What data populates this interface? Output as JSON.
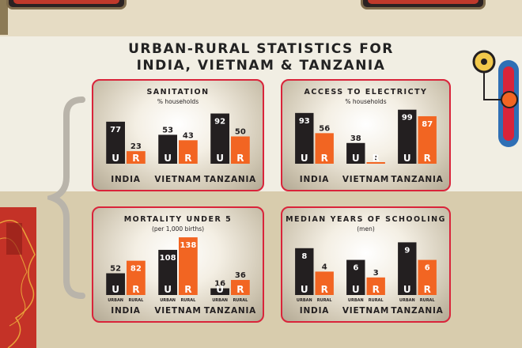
{
  "page": {
    "title_line1": "URBAN-RURAL STATISTICS FOR",
    "title_line2": "INDIA, VIETNAM & TANZANIA"
  },
  "colors": {
    "urban": "#231f20",
    "rural": "#f26522",
    "panel_border": "#d9243a",
    "text": "#231f20"
  },
  "labels": {
    "urban_letter": "U",
    "rural_letter": "R",
    "urban_word": "URBAN",
    "rural_word": "RURAL"
  },
  "chart_data": [
    {
      "type": "bar",
      "title": "SANITATION",
      "subtitle": "% households",
      "categories": [
        "INDIA",
        "VIETNAM",
        "TANZANIA"
      ],
      "series": [
        {
          "name": "URBAN",
          "values": [
            77,
            53,
            92
          ]
        },
        {
          "name": "RURAL",
          "values": [
            23,
            43,
            50
          ]
        }
      ],
      "ylim": [
        0,
        100
      ],
      "show_words": false
    },
    {
      "type": "bar",
      "title": "ACCESS TO ELECTRICTY",
      "subtitle": "% households",
      "categories": [
        "INDIA",
        "VIETNAM",
        "TANZANIA"
      ],
      "series": [
        {
          "name": "URBAN",
          "values": [
            93,
            38,
            99
          ]
        },
        {
          "name": "RURAL",
          "values": [
            56,
            1,
            87
          ]
        }
      ],
      "ylim": [
        0,
        100
      ],
      "show_words": false
    },
    {
      "type": "bar",
      "title": "MORTALITY UNDER 5",
      "subtitle": "(per 1,000 births)",
      "categories": [
        "INDIA",
        "VIETNAM",
        "TANZANIA"
      ],
      "series": [
        {
          "name": "URBAN",
          "values": [
            52,
            108,
            16
          ]
        },
        {
          "name": "RURAL",
          "values": [
            82,
            138,
            36
          ]
        }
      ],
      "ylim": [
        0,
        140
      ],
      "show_words": true
    },
    {
      "type": "bar",
      "title": "MEDIAN YEARS OF SCHOOLING",
      "subtitle": "(men)",
      "categories": [
        "INDIA",
        "VIETNAM",
        "TANZANIA"
      ],
      "series": [
        {
          "name": "URBAN",
          "values": [
            8,
            6,
            9
          ]
        },
        {
          "name": "RURAL",
          "values": [
            4,
            3,
            6
          ]
        }
      ],
      "ylim": [
        0,
        10
      ],
      "show_words": true
    }
  ]
}
